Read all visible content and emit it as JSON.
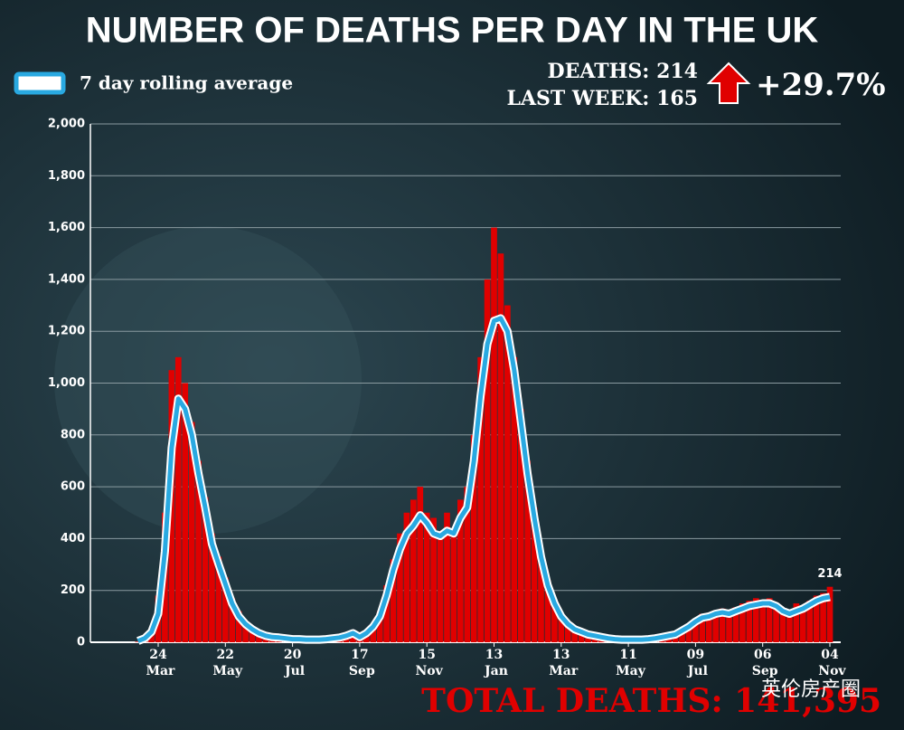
{
  "chart_data": {
    "type": "bar",
    "title": "NUMBER OF DEATHS PER DAY IN THE UK",
    "legend_label": "7 day rolling average",
    "deaths_label": "DEATHS: 214",
    "last_week_label": "LAST WEEK: 165",
    "change_label": "+29.7%",
    "total_label": "TOTAL DEATHS: 141,395",
    "watermark": "英伦房产圈",
    "categories": [
      null,
      null,
      null,
      "24 Mar",
      null,
      null,
      null,
      null,
      null,
      null,
      null,
      null,
      null,
      "22 May",
      null,
      null,
      null,
      null,
      null,
      null,
      null,
      null,
      null,
      "20 Jul",
      null,
      null,
      null,
      null,
      null,
      null,
      null,
      null,
      null,
      "17 Sep",
      null,
      null,
      null,
      null,
      null,
      null,
      null,
      null,
      null,
      "15 Nov",
      null,
      null,
      null,
      null,
      null,
      null,
      null,
      null,
      null,
      "13 Jan",
      null,
      null,
      null,
      null,
      null,
      null,
      null,
      null,
      null,
      "13 Mar",
      null,
      null,
      null,
      null,
      null,
      null,
      null,
      null,
      null,
      "11 May",
      null,
      null,
      null,
      null,
      null,
      null,
      null,
      null,
      null,
      "09 Jul",
      null,
      null,
      null,
      null,
      null,
      null,
      null,
      null,
      null,
      "06 Sep",
      null,
      null,
      null,
      null,
      null,
      null,
      null,
      null,
      null,
      "04 Nov"
    ],
    "series": [
      {
        "name": "Deaths",
        "color": "#e00000",
        "values": [
          2,
          15,
          50,
          180,
          500,
          1050,
          1100,
          1000,
          850,
          700,
          560,
          420,
          330,
          250,
          170,
          120,
          80,
          60,
          40,
          30,
          25,
          20,
          18,
          15,
          14,
          12,
          12,
          11,
          14,
          18,
          22,
          30,
          40,
          25,
          40,
          70,
          120,
          220,
          320,
          420,
          500,
          550,
          600,
          500,
          480,
          420,
          500,
          430,
          550,
          600,
          800,
          1100,
          1400,
          1600,
          1500,
          1300,
          1100,
          900,
          700,
          520,
          350,
          240,
          160,
          110,
          75,
          55,
          45,
          32,
          26,
          22,
          16,
          13,
          11,
          10,
          11,
          10,
          14,
          17,
          22,
          28,
          35,
          50,
          70,
          90,
          110,
          105,
          120,
          130,
          115,
          135,
          150,
          160,
          170,
          160,
          170,
          150,
          120,
          115,
          150,
          140,
          160,
          180,
          190,
          214
        ],
        "value_labels": [
          null,
          null,
          null,
          null,
          null,
          null,
          null,
          null,
          null,
          null,
          null,
          null,
          null,
          null,
          null,
          null,
          null,
          null,
          null,
          null,
          null,
          null,
          null,
          null,
          null,
          null,
          null,
          null,
          null,
          null,
          null,
          null,
          null,
          null,
          null,
          null,
          null,
          null,
          null,
          null,
          null,
          null,
          null,
          null,
          null,
          null,
          null,
          null,
          null,
          null,
          null,
          null,
          null,
          null,
          null,
          null,
          null,
          null,
          null,
          null,
          null,
          null,
          null,
          null,
          null,
          null,
          null,
          null,
          null,
          null,
          null,
          null,
          null,
          null,
          null,
          null,
          null,
          null,
          null,
          null,
          null,
          null,
          null,
          null,
          null,
          null,
          null,
          null,
          null,
          null,
          null,
          null,
          null,
          null,
          null,
          null,
          null,
          null,
          null,
          null,
          null,
          null,
          null,
          "214"
        ]
      },
      {
        "name": "7 day rolling average",
        "color": "#29a9e1",
        "values": [
          5,
          15,
          40,
          110,
          350,
          750,
          940,
          900,
          800,
          650,
          520,
          380,
          300,
          225,
          150,
          100,
          70,
          50,
          35,
          25,
          20,
          18,
          15,
          12,
          12,
          10,
          10,
          10,
          12,
          15,
          18,
          25,
          35,
          20,
          35,
          60,
          100,
          180,
          280,
          360,
          420,
          450,
          490,
          460,
          420,
          410,
          430,
          420,
          480,
          520,
          700,
          950,
          1150,
          1240,
          1250,
          1200,
          1050,
          850,
          650,
          480,
          330,
          220,
          150,
          100,
          70,
          50,
          40,
          30,
          25,
          20,
          15,
          12,
          10,
          10,
          10,
          10,
          12,
          15,
          20,
          25,
          30,
          45,
          60,
          80,
          95,
          100,
          110,
          115,
          110,
          120,
          130,
          140,
          145,
          150,
          150,
          140,
          120,
          110,
          120,
          130,
          145,
          160,
          170,
          175
        ]
      }
    ],
    "ylim": [
      0,
      2000
    ],
    "yticks": [
      0,
      200,
      400,
      600,
      800,
      {
        "value": 1000,
        "label": "1,000"
      },
      {
        "value": 1200,
        "label": "1,200"
      },
      {
        "value": 1400,
        "label": "1,400"
      },
      {
        "value": 1600,
        "label": "1,600"
      },
      {
        "value": 1800,
        "label": "1,800"
      },
      {
        "value": 2000,
        "label": "2,000"
      }
    ],
    "grid": true
  }
}
